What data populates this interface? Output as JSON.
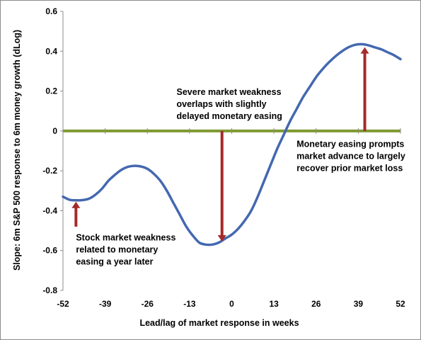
{
  "chart_data": {
    "type": "line",
    "title": "",
    "xlabel": "Lead/lag of market response in weeks",
    "ylabel": "Slope: 6m S&P 500 response to 6m money growth (dLog)",
    "xlim": [
      -52,
      52
    ],
    "ylim": [
      -0.8,
      0.6
    ],
    "x_ticks": [
      -52,
      -39,
      -26,
      -13,
      0,
      13,
      26,
      39,
      52
    ],
    "y_ticks": [
      0.6,
      0.4,
      0.2,
      0,
      -0.2,
      -0.4,
      -0.6,
      -0.8
    ],
    "y_tick_labels": [
      "0.6",
      "0.4",
      "0.2",
      "0",
      "-0.2",
      "-0.4",
      "-0.6",
      "-0.8"
    ],
    "grid": false,
    "legend": "none",
    "zero_line_color": "#7f9a32",
    "series_color": "#4468b0",
    "arrow_color": "#a52a2a",
    "series": [
      {
        "x": [
          -52,
          -50,
          -48,
          -46,
          -44,
          -42,
          -40,
          -38,
          -36,
          -34,
          -32,
          -30,
          -28,
          -26,
          -24,
          -22,
          -20,
          -18,
          -16,
          -14,
          -12,
          -10,
          -8,
          -6,
          -4,
          -2,
          0,
          2,
          4,
          6,
          8,
          10,
          12,
          14,
          16,
          18,
          20,
          22,
          24,
          26,
          28,
          30,
          32,
          34,
          36,
          38,
          40,
          42,
          44,
          46,
          48,
          50,
          52
        ],
        "y": [
          -0.33,
          -0.345,
          -0.348,
          -0.347,
          -0.34,
          -0.32,
          -0.29,
          -0.25,
          -0.22,
          -0.195,
          -0.18,
          -0.175,
          -0.178,
          -0.19,
          -0.215,
          -0.25,
          -0.3,
          -0.36,
          -0.42,
          -0.48,
          -0.525,
          -0.56,
          -0.57,
          -0.57,
          -0.56,
          -0.54,
          -0.52,
          -0.49,
          -0.45,
          -0.4,
          -0.33,
          -0.25,
          -0.17,
          -0.09,
          -0.02,
          0.05,
          0.11,
          0.17,
          0.22,
          0.27,
          0.31,
          0.345,
          0.375,
          0.4,
          0.42,
          0.432,
          0.435,
          0.43,
          0.42,
          0.41,
          0.395,
          0.38,
          0.36
        ]
      }
    ],
    "arrows": [
      {
        "x": -48,
        "y_from": -0.48,
        "y_to": -0.355
      },
      {
        "x": -3,
        "y_from": 0,
        "y_to": -0.555
      },
      {
        "x": 41,
        "y_from": 0,
        "y_to": 0.42
      }
    ],
    "annotations": [
      {
        "lines": [
          "Severe market weakness",
          "overlaps with slightly",
          "delayed monetary easing"
        ],
        "x": -17,
        "y": 0.18
      },
      {
        "lines": [
          "Monetary easing prompts",
          "market advance  to largely",
          "recover prior market loss"
        ],
        "x": 20,
        "y": -0.08
      },
      {
        "lines": [
          "Stock market weakness",
          "related to monetary",
          "easing a year later"
        ],
        "x": -48,
        "y": -0.55
      }
    ]
  }
}
